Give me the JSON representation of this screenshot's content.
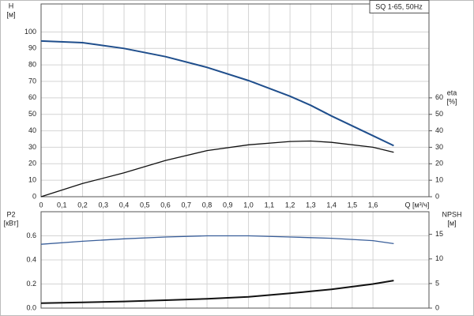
{
  "chart_data": [
    {
      "type": "line",
      "title": "SQ 1-65, 50Hz",
      "y_label": "H",
      "y_unit": "[м]",
      "y2_label": "eta",
      "y2_unit": "[%]",
      "x_label": "Q [м³/ч]",
      "x": [
        0,
        0.2,
        0.4,
        0.6,
        0.8,
        1.0,
        1.2,
        1.3,
        1.4,
        1.6,
        1.7
      ],
      "xlim": [
        0,
        1.87
      ],
      "xticks": [
        0,
        {
          "value": 0.1,
          "label": "0,1"
        },
        {
          "value": 0.2,
          "label": "0,2"
        },
        {
          "value": 0.3,
          "label": "0,3"
        },
        {
          "value": 0.4,
          "label": "0,4"
        },
        {
          "value": 0.5,
          "label": "0,5"
        },
        {
          "value": 0.6,
          "label": "0,6"
        },
        {
          "value": 0.7,
          "label": "0,7"
        },
        {
          "value": 0.8,
          "label": "0,8"
        },
        {
          "value": 0.9,
          "label": "0,9"
        },
        {
          "value": 1.0,
          "label": "1,0"
        },
        {
          "value": 1.1,
          "label": "1,1"
        },
        {
          "value": 1.2,
          "label": "1,2"
        },
        {
          "value": 1.3,
          "label": "1,3"
        },
        {
          "value": 1.4,
          "label": "1,4"
        },
        {
          "value": 1.5,
          "label": "1,5"
        },
        {
          "value": 1.6,
          "label": "1,6"
        }
      ],
      "ylim": [
        0,
        117
      ],
      "yticks": [
        0,
        10,
        20,
        30,
        40,
        50,
        60,
        70,
        80,
        90,
        100
      ],
      "y2lim": [
        0,
        117
      ],
      "y2ticks": [
        0,
        10,
        20,
        30,
        40,
        50,
        60
      ],
      "grid": true,
      "series": [
        {
          "name": "H",
          "color": "#1f4e8c",
          "values": [
            94.5,
            93.5,
            90,
            85,
            78.5,
            70.5,
            61,
            55.5,
            49,
            37,
            31
          ]
        },
        {
          "name": "eta",
          "color": "#111111",
          "axis": "y2",
          "values": [
            0,
            8,
            14.5,
            22,
            28,
            31.5,
            33.5,
            33.8,
            33,
            30,
            27
          ]
        }
      ]
    },
    {
      "type": "line",
      "y_label": "P2",
      "y_unit": "[кВт]",
      "y2_label": "NPSH",
      "y2_unit": "[м]",
      "x": [
        0,
        0.2,
        0.4,
        0.6,
        0.8,
        1.0,
        1.2,
        1.3,
        1.4,
        1.6,
        1.7
      ],
      "xlim": [
        0,
        1.87
      ],
      "ylim": [
        0,
        0.8
      ],
      "yticks": [
        {
          "value": 0,
          "label": "0.0"
        },
        0.2,
        0.4,
        0.6
      ],
      "y2lim": [
        0,
        19.6
      ],
      "y2ticks": [
        0,
        5,
        10,
        15
      ],
      "grid": true,
      "series": [
        {
          "name": "P2",
          "color": "#3a5f9a",
          "values": [
            0.53,
            0.555,
            0.575,
            0.59,
            0.6,
            0.6,
            0.59,
            0.585,
            0.58,
            0.56,
            0.535
          ]
        },
        {
          "name": "NPSH",
          "color": "#111111",
          "axis": "y2",
          "values": [
            1.0,
            1.15,
            1.35,
            1.6,
            1.9,
            2.3,
            3.0,
            3.4,
            3.8,
            4.9,
            5.6
          ]
        }
      ]
    }
  ]
}
